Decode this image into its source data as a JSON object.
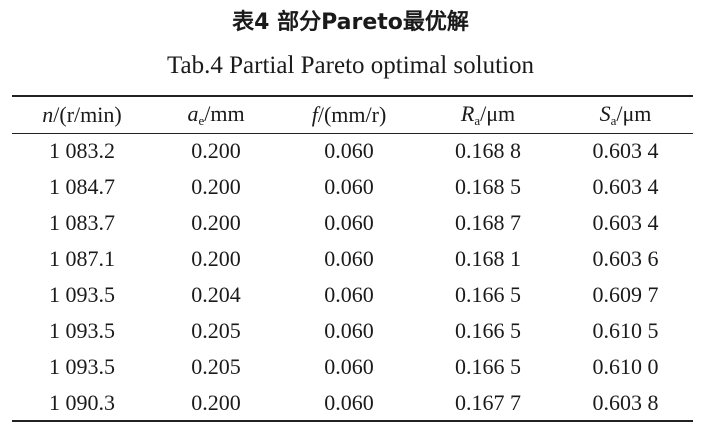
{
  "header": {
    "title": "表4 部分Pareto最优解",
    "subtitle": "Tab.4 Partial Pareto optimal solution"
  },
  "table": {
    "columns": [
      [
        "n",
        "/(r/min)"
      ],
      [
        "a",
        "e",
        "/mm"
      ],
      [
        "f",
        "/(mm/r)"
      ],
      [
        "R",
        "a",
        "/μm"
      ],
      [
        "S",
        "a",
        "/μm"
      ]
    ],
    "rows": [
      [
        "1 083.2",
        "0.200",
        "0.060",
        "0.168 8",
        "0.603 4"
      ],
      [
        "1 084.7",
        "0.200",
        "0.060",
        "0.168 5",
        "0.603 4"
      ],
      [
        "1 083.7",
        "0.200",
        "0.060",
        "0.168 7",
        "0.603 4"
      ],
      [
        "1 087.1",
        "0.200",
        "0.060",
        "0.168 1",
        "0.603 6"
      ],
      [
        "1 093.5",
        "0.204",
        "0.060",
        "0.166 5",
        "0.609 7"
      ],
      [
        "1 093.5",
        "0.205",
        "0.060",
        "0.166 5",
        "0.610 5"
      ],
      [
        "1 093.5",
        "0.205",
        "0.060",
        "0.166 5",
        "0.610 0"
      ],
      [
        "1 090.3",
        "0.200",
        "0.060",
        "0.167 7",
        "0.603 8"
      ]
    ]
  }
}
